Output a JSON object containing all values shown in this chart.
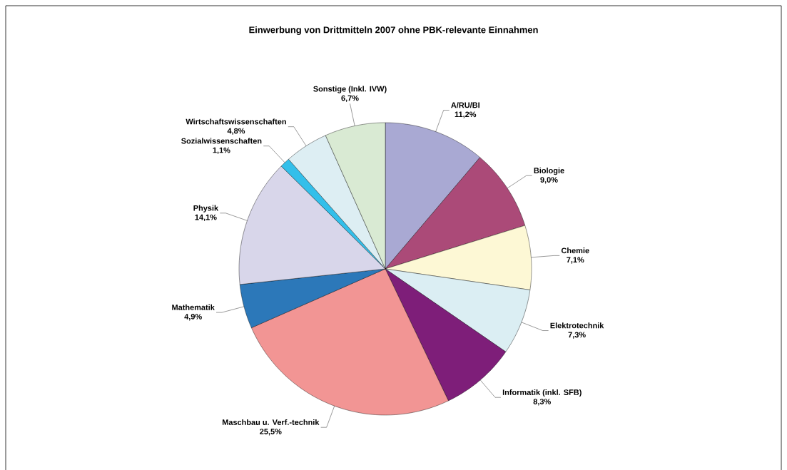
{
  "chart_data": {
    "type": "pie",
    "title": "Einwerbung von Drittmitteln 2007 ohne PBK-relevante Einnahmen",
    "categories": [
      "A/RU/BI",
      "Biologie",
      "Chemie",
      "Elektrotechnik",
      "Informatik (inkl. SFB)",
      "Maschbau u. Verf.-technik",
      "Mathematik",
      "Physik",
      "Sozialwissenschaften",
      "Wirtschaftswissenschaften",
      "Sonstige (Inkl. IVW)"
    ],
    "values": [
      11.2,
      9.0,
      7.1,
      7.3,
      8.3,
      25.5,
      4.9,
      14.1,
      1.1,
      4.8,
      6.7
    ],
    "value_labels": [
      "11,2%",
      "9,0%",
      "7,1%",
      "7,3%",
      "8,3%",
      "25,5%",
      "4,9%",
      "14,1%",
      "1,1%",
      "4,8%",
      "6,7%"
    ],
    "colors": [
      "#a9a9d3",
      "#ab4a78",
      "#fdf8d5",
      "#dbeef3",
      "#7e1e79",
      "#f29594",
      "#2c78b9",
      "#d8d6ea",
      "#33bfea",
      "#ddeef3",
      "#d9ead3"
    ]
  }
}
